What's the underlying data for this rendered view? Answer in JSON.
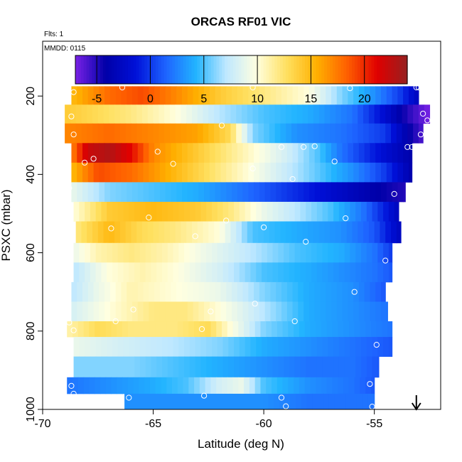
{
  "chart_data": {
    "type": "heatmap",
    "title": "ORCAS RF01 VIC",
    "flights_label": "Flts: 1",
    "date_label": "MMDD: 0115",
    "xlabel": "Latitude (deg N)",
    "ylabel": "PSXC (mbar)",
    "xlim": [
      -70,
      -52
    ],
    "ylim": [
      1000,
      60
    ],
    "x_ticks": [
      -70,
      -65,
      -60,
      -55
    ],
    "y_ticks": [
      200,
      400,
      600,
      800,
      1000
    ],
    "colorbar": {
      "range": [
        -7,
        24
      ],
      "ticks": [
        -5,
        0,
        5,
        10,
        15,
        20
      ],
      "colors": [
        "#7a22e6",
        "#0000a8",
        "#0010d8",
        "#1e64ff",
        "#22b4ff",
        "#bfe8ff",
        "#ffffe0",
        "#ffe060",
        "#ffb000",
        "#ff6000",
        "#e00000",
        "#962020"
      ]
    },
    "arrow_marker_lat": -53.1,
    "bands": [
      {
        "p_top": 175,
        "p_bot": 222,
        "lat_start": -68.7,
        "lat_end": -53.0,
        "stops": [
          [
            -68.7,
            15
          ],
          [
            -67.0,
            18
          ],
          [
            -65.5,
            19
          ],
          [
            -64.0,
            17
          ],
          [
            -62.0,
            14
          ],
          [
            -60.0,
            12
          ],
          [
            -58.0,
            10
          ],
          [
            -56.5,
            6
          ],
          [
            -55.0,
            3
          ],
          [
            -53.8,
            0
          ],
          [
            -53.0,
            -3
          ]
        ]
      },
      {
        "p_top": 222,
        "p_bot": 270,
        "lat_start": -69.0,
        "lat_end": -52.5,
        "stops": [
          [
            -69.0,
            14
          ],
          [
            -67.5,
            13
          ],
          [
            -66.0,
            12
          ],
          [
            -64.0,
            10
          ],
          [
            -62.0,
            7
          ],
          [
            -60.0,
            5
          ],
          [
            -58.0,
            4
          ],
          [
            -56.0,
            2
          ],
          [
            -54.5,
            -2
          ],
          [
            -53.5,
            -5
          ],
          [
            -52.5,
            -7
          ]
        ]
      },
      {
        "p_top": 270,
        "p_bot": 320,
        "lat_start": -69.0,
        "lat_end": -52.8,
        "stops": [
          [
            -69.0,
            17
          ],
          [
            -67.0,
            18
          ],
          [
            -65.0,
            17
          ],
          [
            -63.0,
            16
          ],
          [
            -61.5,
            13
          ],
          [
            -60.5,
            6
          ],
          [
            -58.5,
            3
          ],
          [
            -56.5,
            2
          ],
          [
            -54.5,
            0
          ],
          [
            -53.5,
            -4
          ],
          [
            -52.8,
            -6
          ]
        ]
      },
      {
        "p_top": 320,
        "p_bot": 370,
        "lat_start": -68.7,
        "lat_end": -53.3,
        "stops": [
          [
            -68.7,
            17
          ],
          [
            -68.0,
            22
          ],
          [
            -67.0,
            23
          ],
          [
            -66.0,
            21
          ],
          [
            -65.0,
            17
          ],
          [
            -63.0,
            14
          ],
          [
            -61.0,
            11
          ],
          [
            -59.0,
            8
          ],
          [
            -57.5,
            5
          ],
          [
            -56.5,
            2
          ],
          [
            -55.0,
            -1
          ],
          [
            -53.3,
            -4
          ]
        ]
      },
      {
        "p_top": 370,
        "p_bot": 420,
        "lat_start": -68.7,
        "lat_end": -53.3,
        "stops": [
          [
            -68.7,
            15
          ],
          [
            -67.5,
            19
          ],
          [
            -66.0,
            18
          ],
          [
            -64.0,
            15
          ],
          [
            -62.0,
            12
          ],
          [
            -60.0,
            9
          ],
          [
            -58.0,
            6
          ],
          [
            -56.0,
            3
          ],
          [
            -54.5,
            0
          ],
          [
            -53.3,
            -4
          ]
        ]
      },
      {
        "p_top": 420,
        "p_bot": 470,
        "lat_start": -68.7,
        "lat_end": -53.6,
        "stops": [
          [
            -68.7,
            9
          ],
          [
            -67.0,
            6
          ],
          [
            -65.0,
            5
          ],
          [
            -63.0,
            4
          ],
          [
            -61.0,
            2
          ],
          [
            -59.0,
            0
          ],
          [
            -57.0,
            -2
          ],
          [
            -55.0,
            -4
          ],
          [
            -53.6,
            -5
          ]
        ]
      },
      {
        "p_top": 470,
        "p_bot": 520,
        "lat_start": -68.6,
        "lat_end": -53.9,
        "stops": [
          [
            -68.6,
            10
          ],
          [
            -67.0,
            14
          ],
          [
            -65.0,
            15
          ],
          [
            -63.0,
            14
          ],
          [
            -61.5,
            12
          ],
          [
            -60.0,
            9
          ],
          [
            -58.5,
            7
          ],
          [
            -57.0,
            5
          ],
          [
            -55.5,
            2
          ],
          [
            -54.5,
            -1
          ],
          [
            -53.9,
            -3
          ]
        ]
      },
      {
        "p_top": 520,
        "p_bot": 575,
        "lat_start": -68.5,
        "lat_end": -53.8,
        "stops": [
          [
            -68.5,
            12
          ],
          [
            -67.0,
            15
          ],
          [
            -65.5,
            13
          ],
          [
            -64.0,
            12
          ],
          [
            -62.0,
            10
          ],
          [
            -60.5,
            5
          ],
          [
            -58.5,
            4
          ],
          [
            -56.5,
            3
          ],
          [
            -55.0,
            1
          ],
          [
            -53.8,
            -3
          ]
        ]
      },
      {
        "p_top": 575,
        "p_bot": 625,
        "lat_start": -68.6,
        "lat_end": -54.2,
        "stops": [
          [
            -68.6,
            9
          ],
          [
            -67.5,
            11
          ],
          [
            -66.0,
            12
          ],
          [
            -64.5,
            11
          ],
          [
            -62.5,
            9
          ],
          [
            -60.5,
            7
          ],
          [
            -58.5,
            5
          ],
          [
            -56.5,
            4
          ],
          [
            -55.0,
            2
          ],
          [
            -54.2,
            0
          ]
        ]
      },
      {
        "p_top": 625,
        "p_bot": 675,
        "lat_start": -68.6,
        "lat_end": -54.2,
        "stops": [
          [
            -68.6,
            7
          ],
          [
            -67.0,
            10
          ],
          [
            -65.5,
            11
          ],
          [
            -64.0,
            10
          ],
          [
            -62.0,
            8
          ],
          [
            -60.0,
            5
          ],
          [
            -58.0,
            4
          ],
          [
            -56.5,
            3
          ],
          [
            -55.0,
            2
          ],
          [
            -54.2,
            1
          ]
        ]
      },
      {
        "p_top": 675,
        "p_bot": 725,
        "lat_start": -68.7,
        "lat_end": -54.5,
        "stops": [
          [
            -68.7,
            7
          ],
          [
            -67.5,
            9
          ],
          [
            -66.0,
            11
          ],
          [
            -64.0,
            10
          ],
          [
            -62.0,
            9
          ],
          [
            -60.0,
            6
          ],
          [
            -58.0,
            4
          ],
          [
            -56.0,
            3
          ],
          [
            -54.5,
            1
          ]
        ]
      },
      {
        "p_top": 725,
        "p_bot": 775,
        "lat_start": -68.7,
        "lat_end": -54.4,
        "stops": [
          [
            -68.7,
            8
          ],
          [
            -67.0,
            10
          ],
          [
            -65.0,
            12
          ],
          [
            -63.5,
            12
          ],
          [
            -62.0,
            10
          ],
          [
            -60.0,
            7
          ],
          [
            -58.0,
            4
          ],
          [
            -56.0,
            3
          ],
          [
            -54.4,
            2
          ]
        ]
      },
      {
        "p_top": 775,
        "p_bot": 815,
        "lat_start": -68.9,
        "lat_end": -54.2,
        "stops": [
          [
            -68.9,
            11
          ],
          [
            -67.5,
            13
          ],
          [
            -66.0,
            12
          ],
          [
            -64.0,
            12
          ],
          [
            -62.5,
            13
          ],
          [
            -61.5,
            10
          ],
          [
            -60.0,
            6
          ],
          [
            -58.0,
            4
          ],
          [
            -56.0,
            3
          ],
          [
            -54.2,
            2
          ]
        ]
      },
      {
        "p_top": 815,
        "p_bot": 865,
        "lat_start": -68.6,
        "lat_end": -54.2,
        "stops": [
          [
            -68.6,
            9
          ],
          [
            -66.5,
            8
          ],
          [
            -64.0,
            7
          ],
          [
            -62.0,
            6
          ],
          [
            -60.0,
            4
          ],
          [
            -58.0,
            3
          ],
          [
            -56.0,
            2
          ],
          [
            -54.2,
            1
          ]
        ]
      },
      {
        "p_top": 865,
        "p_bot": 918,
        "lat_start": -68.6,
        "lat_end": -54.8,
        "stops": [
          [
            -68.6,
            6
          ],
          [
            -66.0,
            6
          ],
          [
            -64.0,
            5
          ],
          [
            -62.0,
            4
          ],
          [
            -60.0,
            3
          ],
          [
            -58.0,
            2
          ],
          [
            -56.0,
            2
          ],
          [
            -54.8,
            1
          ]
        ]
      },
      {
        "p_top": 918,
        "p_bot": 960,
        "lat_start": -68.9,
        "lat_end": -55.0,
        "stops": [
          [
            -68.9,
            2
          ],
          [
            -67.0,
            3
          ],
          [
            -65.0,
            4
          ],
          [
            -63.5,
            5
          ],
          [
            -62.0,
            8
          ],
          [
            -61.0,
            9
          ],
          [
            -60.0,
            5
          ],
          [
            -58.0,
            3
          ],
          [
            -56.0,
            2
          ],
          [
            -55.0,
            1
          ]
        ]
      },
      {
        "p_top": 960,
        "p_bot": 1000,
        "lat_start": -66.3,
        "lat_end": -55.0,
        "stops": [
          [
            -66.3,
            3
          ],
          [
            -64.0,
            3
          ],
          [
            -62.0,
            3
          ],
          [
            -60.0,
            3
          ],
          [
            -58.0,
            2
          ],
          [
            -56.0,
            2
          ],
          [
            -55.0,
            2
          ]
        ]
      }
    ],
    "points": [
      [
        -68.6,
        190
      ],
      [
        -66.4,
        178
      ],
      [
        -60.5,
        178
      ],
      [
        -56.1,
        180
      ],
      [
        -53.1,
        178
      ],
      [
        -53.0,
        178
      ],
      [
        -68.7,
        252
      ],
      [
        -52.8,
        245
      ],
      [
        -52.6,
        262
      ],
      [
        -61.9,
        275
      ],
      [
        -68.6,
        298
      ],
      [
        -52.9,
        298
      ],
      [
        -58.2,
        330
      ],
      [
        -59.2,
        330
      ],
      [
        -57.7,
        328
      ],
      [
        -53.5,
        330
      ],
      [
        -53.3,
        330
      ],
      [
        -67.7,
        360
      ],
      [
        -64.8,
        342
      ],
      [
        -56.8,
        367
      ],
      [
        -68.1,
        370
      ],
      [
        -64.1,
        373
      ],
      [
        -60.5,
        385
      ],
      [
        -58.7,
        412
      ],
      [
        -54.1,
        450
      ],
      [
        -68.8,
        435
      ],
      [
        -65.2,
        510
      ],
      [
        -61.7,
        518
      ],
      [
        -56.3,
        512
      ],
      [
        -66.9,
        538
      ],
      [
        -60.0,
        535
      ],
      [
        -63.1,
        558
      ],
      [
        -58.1,
        572
      ],
      [
        -54.5,
        620
      ],
      [
        -55.9,
        700
      ],
      [
        -60.4,
        730
      ],
      [
        -65.9,
        745
      ],
      [
        -66.7,
        775
      ],
      [
        -62.4,
        750
      ],
      [
        -58.6,
        775
      ],
      [
        -68.8,
        778
      ],
      [
        -62.8,
        795
      ],
      [
        -68.6,
        798
      ],
      [
        -54.9,
        835
      ],
      [
        -68.7,
        940
      ],
      [
        -55.2,
        935
      ],
      [
        -66.1,
        970
      ],
      [
        -62.7,
        965
      ],
      [
        -59.2,
        970
      ],
      [
        -68.6,
        960
      ],
      [
        -59.0,
        992
      ],
      [
        -55.1,
        993
      ]
    ]
  }
}
